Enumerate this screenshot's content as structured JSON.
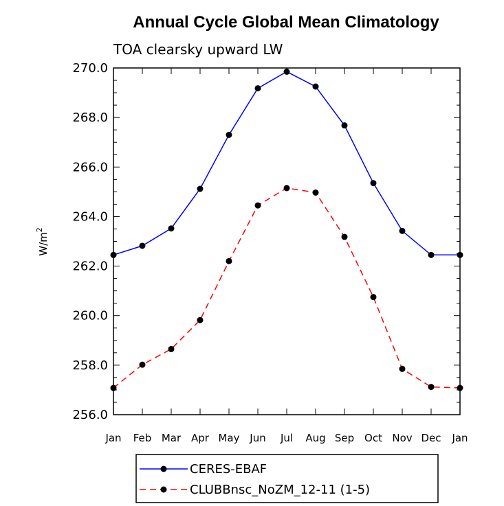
{
  "chart_data": {
    "type": "line",
    "title": "Annual Cycle Global Mean Climatology",
    "subtitle": "TOA clearsky upward LW",
    "ylabel_base": "W/m",
    "ylabel_sup": "2",
    "xlabel": "",
    "categories": [
      "Jan",
      "Feb",
      "Mar",
      "Apr",
      "May",
      "Jun",
      "Jul",
      "Aug",
      "Sep",
      "Oct",
      "Nov",
      "Dec",
      "Jan"
    ],
    "ylim": [
      256.0,
      270.0
    ],
    "yticks": [
      "256.0",
      "258.0",
      "260.0",
      "262.0",
      "264.0",
      "266.0",
      "268.0",
      "270.0"
    ],
    "series": [
      {
        "name": "CERES-EBAF",
        "color": "#0000ff",
        "dash": "solid",
        "values": [
          262.45,
          262.82,
          263.52,
          265.12,
          267.3,
          269.18,
          269.85,
          269.25,
          267.68,
          265.35,
          263.42,
          262.45,
          262.45
        ]
      },
      {
        "name": "CLUBBnsc_NoZM_12-11 (1-5)",
        "color": "#ff0000",
        "dash": "dashed",
        "values": [
          257.08,
          258.02,
          258.65,
          259.82,
          262.2,
          264.45,
          265.15,
          264.97,
          263.18,
          260.75,
          257.85,
          257.12,
          257.08
        ]
      }
    ],
    "grid": false,
    "legend_position": "bottom"
  }
}
